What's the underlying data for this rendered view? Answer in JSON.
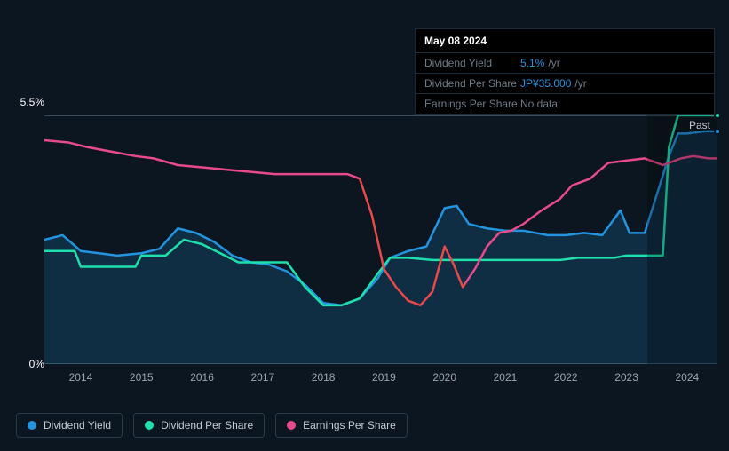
{
  "tooltip": {
    "date": "May 08 2024",
    "rows": [
      {
        "label": "Dividend Yield",
        "value": "5.1%",
        "unit": "/yr",
        "nodata": false
      },
      {
        "label": "Dividend Per Share",
        "value": "JP¥35.000",
        "unit": "/yr",
        "nodata": false
      },
      {
        "label": "Earnings Per Share",
        "value": "No data",
        "unit": "",
        "nodata": true
      }
    ]
  },
  "chart": {
    "type": "line",
    "background_color": "#0b1621",
    "ymin": 0,
    "ymax": 5.5,
    "ytick_top": "5.5%",
    "ytick_bottom": "0%",
    "xticks": [
      "2014",
      "2015",
      "2016",
      "2017",
      "2018",
      "2019",
      "2020",
      "2021",
      "2022",
      "2023",
      "2024"
    ],
    "xmin": 2013.4,
    "xmax": 2024.5,
    "grid_color": "#1a2a38",
    "past_region_start": 2023.35,
    "past_label": "Past",
    "end_markers": [
      {
        "series": "dividend_per_share",
        "x": 2024.5,
        "y": 5.5,
        "color": "#1ee0ac"
      },
      {
        "series": "dividend_yield",
        "x": 2024.5,
        "y": 5.15,
        "color": "#2394df"
      }
    ],
    "series": [
      {
        "id": "dividend_yield",
        "label": "Dividend Yield",
        "color": "#2394df",
        "fill": "rgba(35,148,223,0.18)",
        "line_width": 2.5,
        "points": [
          [
            2013.4,
            2.75
          ],
          [
            2013.7,
            2.85
          ],
          [
            2014.0,
            2.5
          ],
          [
            2014.3,
            2.45
          ],
          [
            2014.6,
            2.4
          ],
          [
            2015.0,
            2.45
          ],
          [
            2015.3,
            2.55
          ],
          [
            2015.6,
            3.0
          ],
          [
            2015.9,
            2.9
          ],
          [
            2016.2,
            2.7
          ],
          [
            2016.5,
            2.4
          ],
          [
            2016.8,
            2.25
          ],
          [
            2017.1,
            2.2
          ],
          [
            2017.4,
            2.05
          ],
          [
            2017.7,
            1.75
          ],
          [
            2018.0,
            1.35
          ],
          [
            2018.3,
            1.3
          ],
          [
            2018.6,
            1.45
          ],
          [
            2018.9,
            1.9
          ],
          [
            2019.1,
            2.35
          ],
          [
            2019.4,
            2.5
          ],
          [
            2019.7,
            2.6
          ],
          [
            2020.0,
            3.45
          ],
          [
            2020.2,
            3.5
          ],
          [
            2020.4,
            3.1
          ],
          [
            2020.7,
            3.0
          ],
          [
            2021.0,
            2.95
          ],
          [
            2021.3,
            2.95
          ],
          [
            2021.7,
            2.85
          ],
          [
            2022.0,
            2.85
          ],
          [
            2022.3,
            2.9
          ],
          [
            2022.6,
            2.85
          ],
          [
            2022.9,
            3.4
          ],
          [
            2023.05,
            2.9
          ],
          [
            2023.3,
            2.9
          ],
          [
            2023.7,
            4.6
          ],
          [
            2023.85,
            5.1
          ],
          [
            2024.0,
            5.1
          ],
          [
            2024.3,
            5.15
          ],
          [
            2024.5,
            5.15
          ]
        ]
      },
      {
        "id": "dividend_per_share",
        "label": "Dividend Per Share",
        "color": "#1ee0ac",
        "line_width": 2.5,
        "points": [
          [
            2013.4,
            2.5
          ],
          [
            2013.9,
            2.5
          ],
          [
            2014.0,
            2.15
          ],
          [
            2014.5,
            2.15
          ],
          [
            2014.9,
            2.15
          ],
          [
            2015.0,
            2.4
          ],
          [
            2015.4,
            2.4
          ],
          [
            2015.7,
            2.75
          ],
          [
            2016.0,
            2.65
          ],
          [
            2016.3,
            2.45
          ],
          [
            2016.6,
            2.25
          ],
          [
            2017.0,
            2.25
          ],
          [
            2017.4,
            2.25
          ],
          [
            2017.7,
            1.7
          ],
          [
            2018.0,
            1.3
          ],
          [
            2018.3,
            1.3
          ],
          [
            2018.6,
            1.45
          ],
          [
            2018.9,
            2.0
          ],
          [
            2019.1,
            2.35
          ],
          [
            2019.4,
            2.35
          ],
          [
            2019.8,
            2.3
          ],
          [
            2020.0,
            2.3
          ],
          [
            2020.4,
            2.3
          ],
          [
            2020.8,
            2.3
          ],
          [
            2021.1,
            2.3
          ],
          [
            2021.5,
            2.3
          ],
          [
            2021.9,
            2.3
          ],
          [
            2022.2,
            2.35
          ],
          [
            2022.5,
            2.35
          ],
          [
            2022.8,
            2.35
          ],
          [
            2023.0,
            2.4
          ],
          [
            2023.35,
            2.4
          ],
          [
            2023.6,
            2.4
          ],
          [
            2023.7,
            4.8
          ],
          [
            2023.85,
            5.5
          ],
          [
            2024.1,
            5.5
          ],
          [
            2024.5,
            5.5
          ]
        ]
      },
      {
        "id": "earnings_per_share",
        "label": "Earnings Per Share",
        "color": "#e84a8a",
        "line_width": 2.5,
        "color_segments": [
          {
            "from": 2018.6,
            "to": 2020.35,
            "color": "#e84a4a"
          }
        ],
        "points": [
          [
            2013.4,
            4.95
          ],
          [
            2013.8,
            4.9
          ],
          [
            2014.1,
            4.8
          ],
          [
            2014.5,
            4.7
          ],
          [
            2014.9,
            4.6
          ],
          [
            2015.2,
            4.55
          ],
          [
            2015.6,
            4.4
          ],
          [
            2016.0,
            4.35
          ],
          [
            2016.4,
            4.3
          ],
          [
            2016.8,
            4.25
          ],
          [
            2017.2,
            4.2
          ],
          [
            2017.7,
            4.2
          ],
          [
            2018.1,
            4.2
          ],
          [
            2018.4,
            4.2
          ],
          [
            2018.6,
            4.1
          ],
          [
            2018.8,
            3.3
          ],
          [
            2019.0,
            2.1
          ],
          [
            2019.2,
            1.7
          ],
          [
            2019.4,
            1.4
          ],
          [
            2019.6,
            1.3
          ],
          [
            2019.8,
            1.6
          ],
          [
            2020.0,
            2.6
          ],
          [
            2020.15,
            2.2
          ],
          [
            2020.3,
            1.7
          ],
          [
            2020.5,
            2.1
          ],
          [
            2020.7,
            2.6
          ],
          [
            2020.9,
            2.9
          ],
          [
            2021.1,
            2.95
          ],
          [
            2021.3,
            3.1
          ],
          [
            2021.6,
            3.4
          ],
          [
            2021.9,
            3.65
          ],
          [
            2022.1,
            3.95
          ],
          [
            2022.4,
            4.1
          ],
          [
            2022.7,
            4.45
          ],
          [
            2023.0,
            4.5
          ],
          [
            2023.3,
            4.55
          ],
          [
            2023.6,
            4.4
          ],
          [
            2023.9,
            4.55
          ],
          [
            2024.1,
            4.6
          ],
          [
            2024.35,
            4.55
          ]
        ]
      }
    ]
  },
  "legend": {
    "items": [
      {
        "id": "dividend_yield",
        "label": "Dividend Yield",
        "color": "#2394df"
      },
      {
        "id": "dividend_per_share",
        "label": "Dividend Per Share",
        "color": "#1ee0ac"
      },
      {
        "id": "earnings_per_share",
        "label": "Earnings Per Share",
        "color": "#e84a8a"
      }
    ]
  }
}
